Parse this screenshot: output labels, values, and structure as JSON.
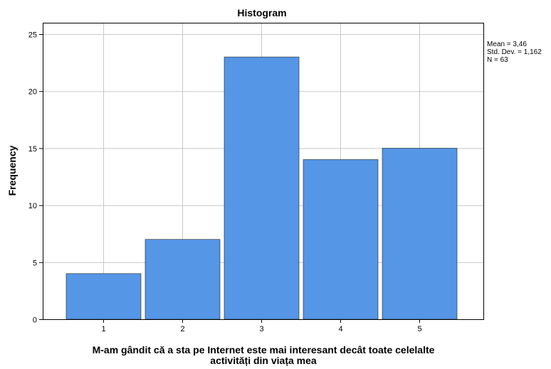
{
  "chart_data": {
    "type": "bar",
    "title": "Histogram",
    "categories": [
      "1",
      "2",
      "3",
      "4",
      "5"
    ],
    "values": [
      4,
      7,
      23,
      14,
      15
    ],
    "xlabel_lines": [
      "M-am gândit că a sta pe Internet este mai interesant decât toate celelalte",
      "activități din viața mea"
    ],
    "ylabel": "Frequency",
    "ylim": [
      0,
      26
    ],
    "yticks": [
      "0",
      "5",
      "10",
      "15",
      "20",
      "25"
    ],
    "ytick_values": [
      0,
      5,
      10,
      15,
      20,
      25
    ],
    "grid": true,
    "legend_stats": [
      "Mean = 3,46",
      "Std. Dev. = 1,162",
      "N = 63"
    ],
    "bar_color": "#5596e6",
    "grid_color": "#c8c8c8"
  }
}
